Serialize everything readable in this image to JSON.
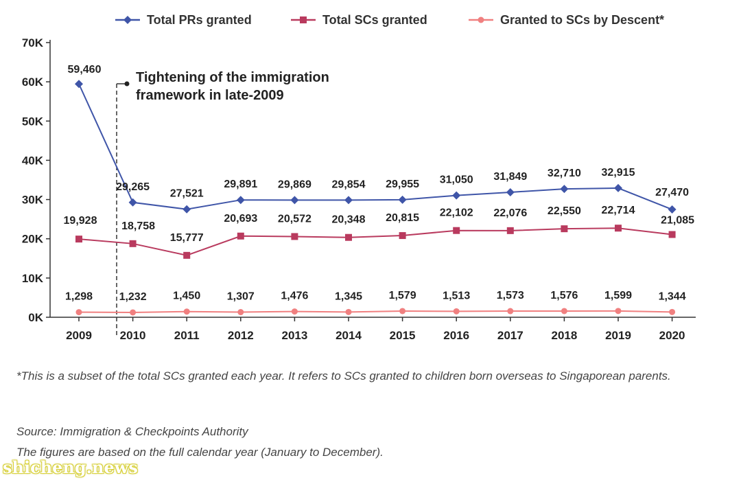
{
  "chart_data": {
    "type": "line",
    "categories": [
      "2009",
      "2010",
      "2011",
      "2012",
      "2013",
      "2014",
      "2015",
      "2016",
      "2017",
      "2018",
      "2019",
      "2020"
    ],
    "series": [
      {
        "name": "Total PRs granted",
        "color": "#3f55a8",
        "marker": "diamond",
        "values": [
          59460,
          29265,
          27521,
          29891,
          29869,
          29854,
          29955,
          31050,
          31849,
          32710,
          32915,
          27470
        ],
        "labels": [
          "59,460",
          "29,265",
          "27,521",
          "29,891",
          "29,869",
          "29,854",
          "29,955",
          "31,050",
          "31,849",
          "32,710",
          "32,915",
          "27,470"
        ]
      },
      {
        "name": "Total SCs granted",
        "color": "#b93a5e",
        "marker": "square",
        "values": [
          19928,
          18758,
          15777,
          20693,
          20572,
          20348,
          20815,
          22102,
          22076,
          22550,
          22714,
          21085
        ],
        "labels": [
          "19,928",
          "18,758",
          "15,777",
          "20,693",
          "20,572",
          "20,348",
          "20,815",
          "22,102",
          "22,076",
          "22,550",
          "22,714",
          "21,085"
        ]
      },
      {
        "name": "Granted to SCs by Descent*",
        "color": "#f08080",
        "marker": "circle",
        "values": [
          1298,
          1232,
          1450,
          1307,
          1476,
          1345,
          1579,
          1513,
          1573,
          1576,
          1599,
          1344
        ],
        "labels": [
          "1,298",
          "1,232",
          "1,450",
          "1,307",
          "1,476",
          "1,345",
          "1,579",
          "1,513",
          "1,573",
          "1,576",
          "1,599",
          "1,344"
        ]
      }
    ],
    "yticks": [
      {
        "value": 0,
        "label": "0K"
      },
      {
        "value": 10000,
        "label": "10K"
      },
      {
        "value": 20000,
        "label": "20K"
      },
      {
        "value": 30000,
        "label": "30K"
      },
      {
        "value": 40000,
        "label": "40K"
      },
      {
        "value": 50000,
        "label": "50K"
      },
      {
        "value": 60000,
        "label": "60K"
      },
      {
        "value": 70000,
        "label": "70K"
      }
    ],
    "ylim": [
      0,
      70000
    ],
    "grid": false,
    "legend": "top",
    "annotation": {
      "lines": [
        "Tightening of the immigration",
        "framework in late-2009"
      ],
      "marker_year": 2009.7
    }
  },
  "footnotes": {
    "note": "*This is a subset of the total SCs granted each year. It refers to SCs granted to children born overseas to Singaporean parents.",
    "source": "Source: Immigration & Checkpoints Authority",
    "basis": "The figures are based on the full calendar year (January to December)."
  },
  "watermark": "shicheng.news"
}
